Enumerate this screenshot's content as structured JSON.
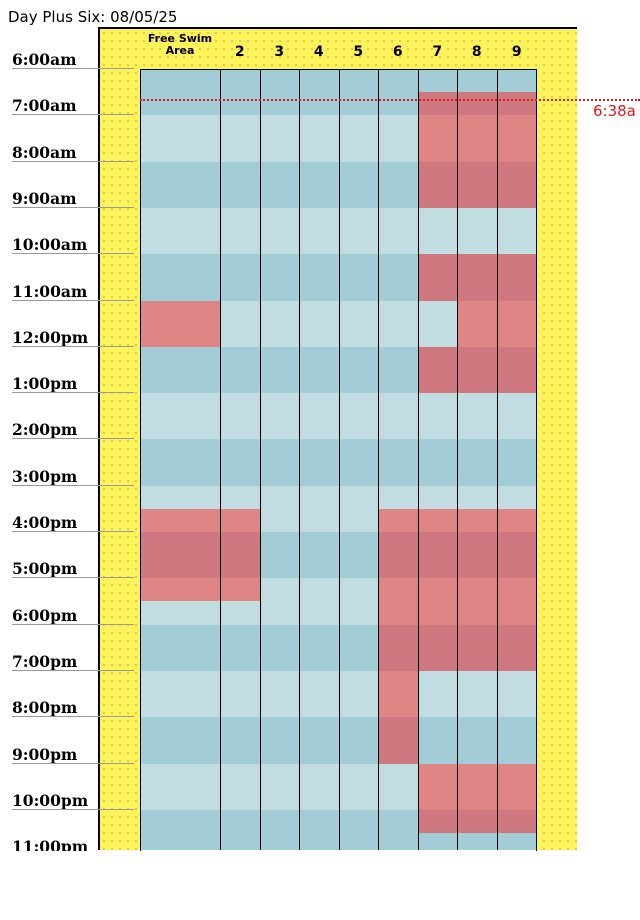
{
  "header": {
    "title": "Day Plus Six: 08/05/25"
  },
  "columns": [
    "Free Swim Area",
    "2",
    "3",
    "4",
    "5",
    "6",
    "7",
    "8",
    "9"
  ],
  "times": [
    "6:00am",
    "7:00am",
    "8:00am",
    "9:00am",
    "10:00am",
    "11:00am",
    "12:00pm",
    "1:00pm",
    "2:00pm",
    "3:00pm",
    "4:00pm",
    "5:00pm",
    "6:00pm",
    "7:00pm",
    "8:00pm",
    "9:00pm",
    "10:00pm",
    "11:00pm"
  ],
  "current_time": {
    "label": "6:38a",
    "color": "#dd1a1a"
  },
  "colors": {
    "available_light": "#c1dde2",
    "available_dark": "#a2cdd7",
    "booked_light": "#e08585",
    "booked_dark": "#cf7880",
    "background": "#fcf25a"
  },
  "booked": [
    {
      "col": 0,
      "from": "11:00am",
      "to": "12:00pm"
    },
    {
      "col": 0,
      "from": "3:30pm",
      "to": "5:30pm"
    },
    {
      "col": 1,
      "from": "3:30pm",
      "to": "5:30pm"
    },
    {
      "col": 5,
      "from": "3:30pm",
      "to": "9:00pm"
    },
    {
      "col": 6,
      "from": "6:30am",
      "to": "9:00am"
    },
    {
      "col": 6,
      "from": "10:00am",
      "to": "11:00am"
    },
    {
      "col": 6,
      "from": "12:00pm",
      "to": "1:00pm"
    },
    {
      "col": 6,
      "from": "3:30pm",
      "to": "7:00pm"
    },
    {
      "col": 6,
      "from": "9:00pm",
      "to": "10:30pm"
    },
    {
      "col": 7,
      "from": "6:30am",
      "to": "9:00am"
    },
    {
      "col": 7,
      "from": "10:00am",
      "to": "1:00pm"
    },
    {
      "col": 7,
      "from": "3:30pm",
      "to": "7:00pm"
    },
    {
      "col": 7,
      "from": "9:00pm",
      "to": "10:30pm"
    },
    {
      "col": 8,
      "from": "6:30am",
      "to": "9:00am"
    },
    {
      "col": 8,
      "from": "10:00am",
      "to": "1:00pm"
    },
    {
      "col": 8,
      "from": "3:30pm",
      "to": "7:00pm"
    },
    {
      "col": 8,
      "from": "9:00pm",
      "to": "10:30pm"
    }
  ]
}
